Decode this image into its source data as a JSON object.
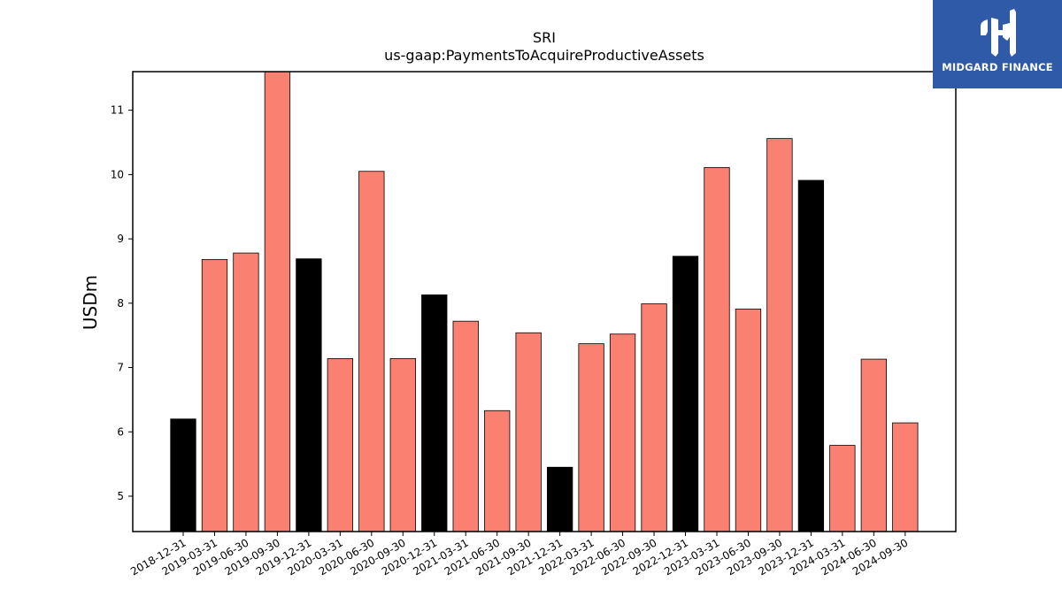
{
  "chart_data": {
    "type": "bar",
    "title": "SRI",
    "subtitle": "us-gaap:PaymentsToAcquireProductiveAssets",
    "xlabel": "",
    "ylabel": "USDm",
    "ylim": [
      4.45,
      11.6
    ],
    "yticks": [
      5,
      6,
      7,
      8,
      9,
      10,
      11
    ],
    "grid": false,
    "categories": [
      "2018-12-31",
      "2019-03-31",
      "2019-06-30",
      "2019-09-30",
      "2019-12-31",
      "2020-03-31",
      "2020-06-30",
      "2020-09-30",
      "2020-12-31",
      "2021-03-31",
      "2021-06-30",
      "2021-09-30",
      "2021-12-31",
      "2022-03-31",
      "2022-06-30",
      "2022-09-30",
      "2022-12-31",
      "2023-03-31",
      "2023-06-30",
      "2023-09-30",
      "2023-12-31",
      "2024-03-31",
      "2024-06-30",
      "2024-09-30"
    ],
    "values": [
      6.2,
      8.68,
      8.78,
      11.6,
      8.69,
      7.14,
      10.05,
      7.14,
      8.13,
      7.72,
      6.33,
      7.54,
      5.45,
      7.37,
      7.52,
      7.99,
      8.73,
      10.11,
      7.91,
      10.56,
      9.91,
      5.79,
      7.13,
      6.14
    ],
    "colors": {
      "year_end": "#000000",
      "quarter": "#fa8072",
      "edge": "#000000"
    }
  },
  "logo": {
    "text": "MIDGARD FINANCE",
    "color": "#2f5aa8"
  }
}
